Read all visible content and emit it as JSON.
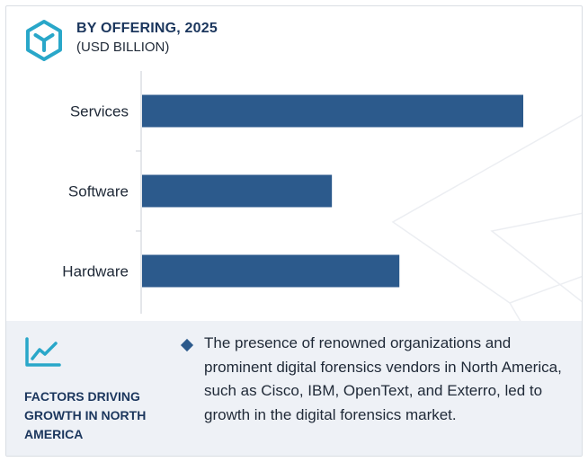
{
  "header": {
    "title": "BY OFFERING, 2025",
    "subtitle": "(USD BILLION)",
    "logo_icon": "cube-hexagon-icon"
  },
  "chart_data": {
    "type": "bar",
    "orientation": "horizontal",
    "categories": [
      "Services",
      "Software",
      "Hardware"
    ],
    "values": [
      100,
      49.8,
      67.5
    ],
    "value_units": "relative (no axis values printed)",
    "xlim": [
      0,
      100
    ],
    "bar_color": "#2c5a8c",
    "grid": false,
    "legend": "none"
  },
  "panel": {
    "icon": "trend-chart-icon",
    "title": "FACTORS DRIVING GROWTH IN NORTH AMERICA",
    "bullet_icon": "diamond-bullet-icon",
    "description": "The presence of renowned organizations and prominent digital forensics vendors in North America, such as Cisco, IBM, OpenText, and Exterro, led to growth in the digital forensics market."
  },
  "colors": {
    "accent": "#29a7c9",
    "navy": "#1b365d",
    "bar": "#2c5a8c",
    "panel_bg": "#eef1f6"
  }
}
